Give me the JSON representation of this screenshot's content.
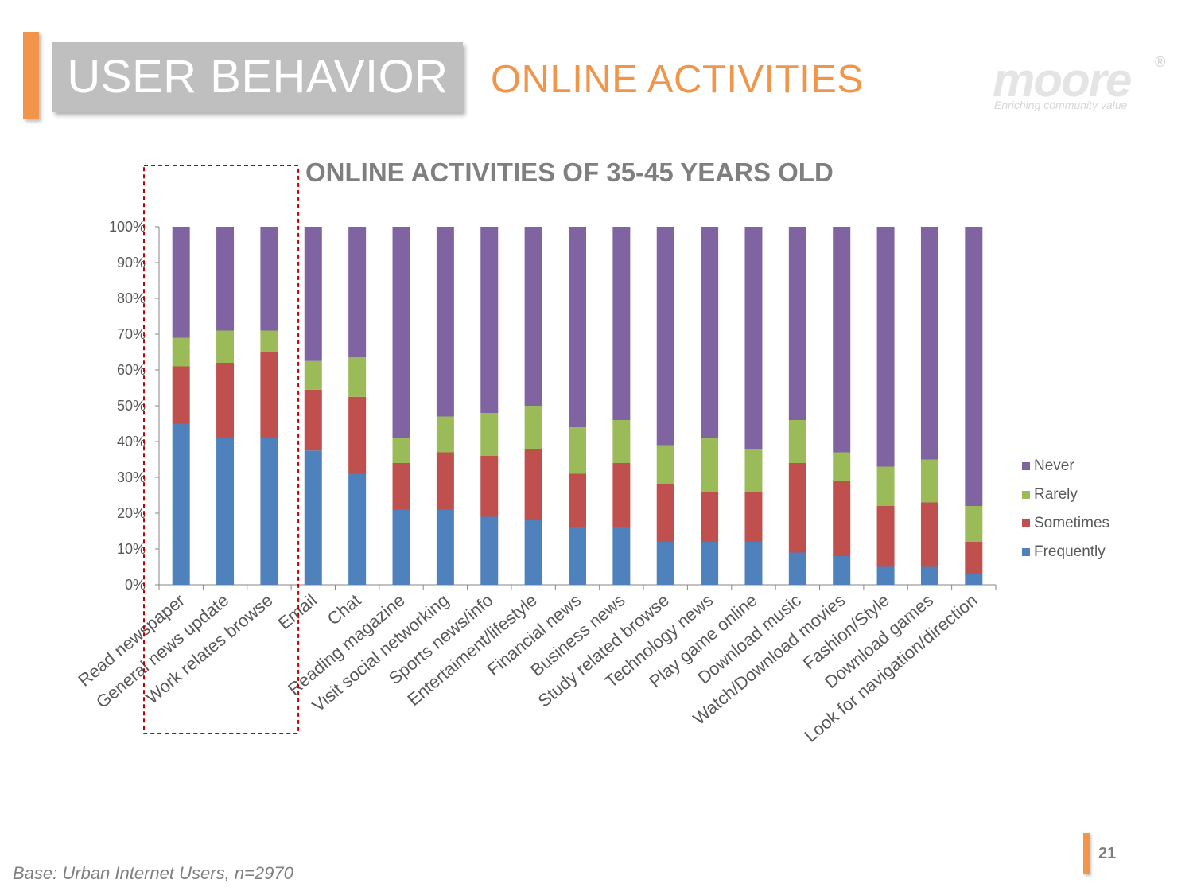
{
  "header": {
    "section": "USER BEHAVIOR",
    "subtitle": "ONLINE ACTIVITIES"
  },
  "logo": {
    "wordmark": "moore",
    "registered": "®",
    "tagline": "Enriching community value"
  },
  "colors": {
    "accent": "#f0954a",
    "frequently": "#4f81bd",
    "sometimes": "#c0504d",
    "rarely": "#9bbb59",
    "never": "#8064a2",
    "highlight_box": "#c00000"
  },
  "chart_data": {
    "type": "bar",
    "stacked": true,
    "percent": true,
    "title": "ONLINE ACTIVITIES OF 35-45 YEARS OLD",
    "xlabel": "",
    "ylabel": "",
    "ylim": [
      0,
      100
    ],
    "y_ticks": [
      "0%",
      "10%",
      "20%",
      "30%",
      "40%",
      "50%",
      "60%",
      "70%",
      "80%",
      "90%",
      "100%"
    ],
    "legend_position": "right",
    "categories": [
      "Read newspaper",
      "General news update",
      "Work relates browse",
      "Email",
      "Chat",
      "Reading magazine",
      "Visit social networking",
      "Sports news/info",
      "Entertaiment/lifestyle",
      "Financial news",
      "Business news",
      "Study related browse",
      "Technology news",
      "Play game online",
      "Download music",
      "Watch/Download movies",
      "Fashion/Style",
      "Download games",
      "Look for navigation/direction"
    ],
    "series": [
      {
        "name": "Frequently",
        "color": "#4f81bd",
        "values": [
          45,
          41,
          41,
          37.5,
          31,
          21,
          21,
          19,
          18,
          16,
          16,
          12,
          12,
          12,
          9,
          8,
          5,
          5,
          3
        ]
      },
      {
        "name": "Sometimes",
        "color": "#c0504d",
        "values": [
          16,
          21,
          24,
          17,
          21.5,
          13,
          16,
          17,
          20,
          15,
          18,
          16,
          14,
          14,
          25,
          21,
          17,
          18,
          9
        ]
      },
      {
        "name": "Rarely",
        "color": "#9bbb59",
        "values": [
          8,
          9,
          6,
          8,
          11,
          7,
          10,
          12,
          12,
          13,
          12,
          11,
          15,
          12,
          12,
          8,
          11,
          12,
          10
        ]
      },
      {
        "name": "Never",
        "color": "#8064a2",
        "values": [
          31,
          29,
          29,
          37.5,
          36.5,
          59,
          53,
          52,
          50,
          56,
          54,
          61,
          59,
          62,
          54,
          63,
          67,
          65,
          78
        ]
      }
    ],
    "highlighted_categories": [
      "Read newspaper",
      "General news update",
      "Work relates browse"
    ]
  },
  "legend": {
    "items": [
      {
        "label": "Never",
        "color": "#8064a2"
      },
      {
        "label": "Rarely",
        "color": "#9bbb59"
      },
      {
        "label": "Sometimes",
        "color": "#c0504d"
      },
      {
        "label": "Frequently",
        "color": "#4f81bd"
      }
    ]
  },
  "footer": {
    "base_note": "Base: Urban Internet Users, n=2970",
    "page_number": "21"
  }
}
